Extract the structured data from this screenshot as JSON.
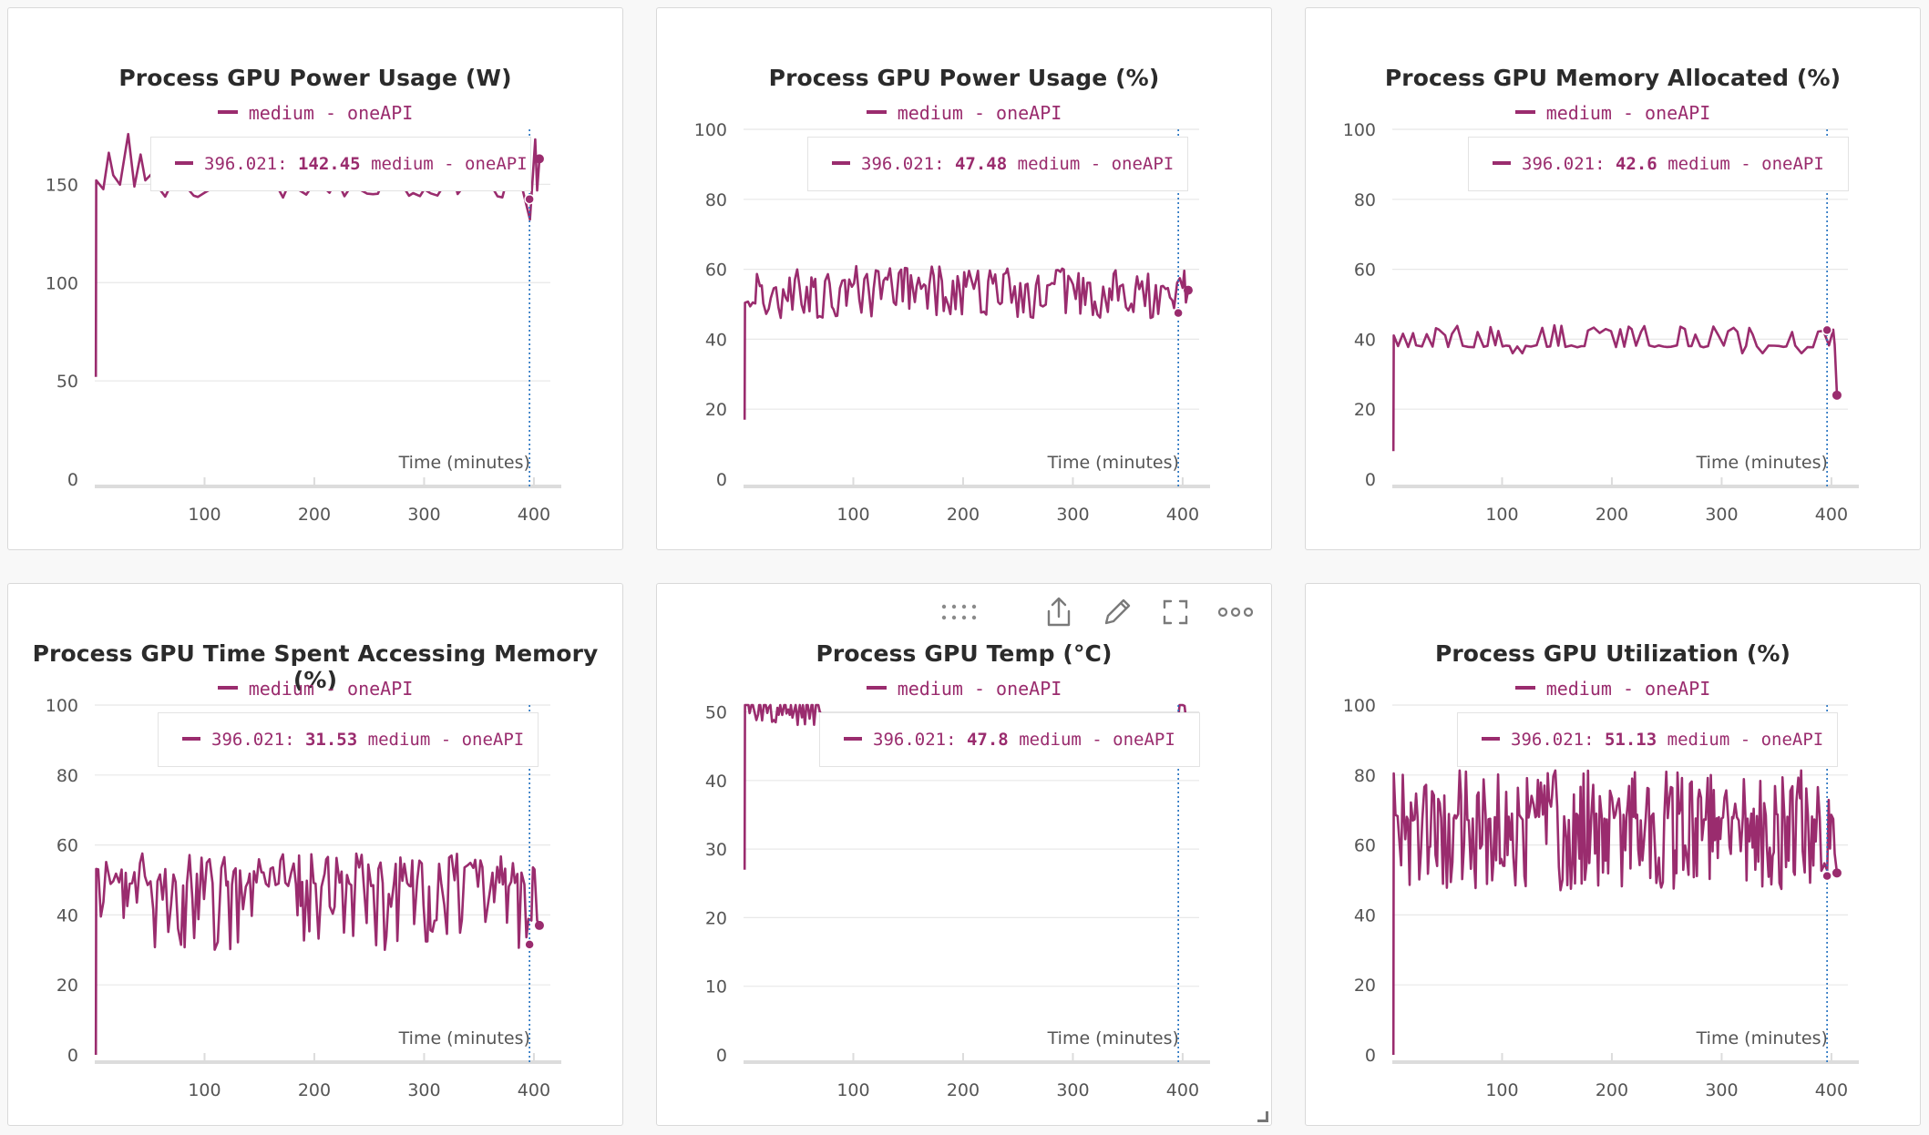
{
  "colors": {
    "series": "#9a2c6e",
    "cursor": "#1f6fbf",
    "grid": "#e8e8e8",
    "axis": "#dcdcdc",
    "text": "#555555"
  },
  "toolbar": {
    "drag_icon": "drag-handle-icon",
    "share_icon": "share-icon",
    "edit_icon": "pencil-icon",
    "expand_icon": "fullscreen-icon",
    "more_icon": "more-icon"
  },
  "chart_data": [
    {
      "type": "line",
      "title": "Process GPU Power Usage (W)",
      "legend": "medium - oneAPI",
      "xlabel": "Time (minutes)",
      "xlim": [
        0,
        415
      ],
      "ylim": [
        0,
        178
      ],
      "x_ticks": [
        100,
        200,
        300,
        400
      ],
      "y_ticks": [
        0,
        50,
        100,
        150
      ],
      "cursor": {
        "x": 396.021,
        "label": "396.021:",
        "value": "142.45",
        "series": "medium - oneAPI"
      },
      "series": [
        {
          "name": "medium - oneAPI",
          "baseline": 150,
          "lows": [
            143,
            148
          ],
          "highs": [
            152,
            156
          ],
          "dip_spacing": 8,
          "start_value": 52,
          "end_value": 163,
          "end_x": 405,
          "segments": [
            {
              "x0": 1,
              "x1": 43,
              "baseline": 166,
              "lows": [
                147,
                158
              ],
              "highs": [
                170,
                178
              ]
            },
            {
              "x0": 393,
              "x1": 405,
              "baseline": 166,
              "lows": [
                125,
                145
              ],
              "highs": [
                170,
                174
              ]
            }
          ]
        }
      ]
    },
    {
      "type": "line",
      "title": "Process GPU Power Usage (%)",
      "legend": "medium - oneAPI",
      "xlabel": "Time (minutes)",
      "xlim": [
        0,
        415
      ],
      "ylim": [
        0,
        100
      ],
      "x_ticks": [
        100,
        200,
        300,
        400
      ],
      "y_ticks": [
        0,
        20,
        40,
        60,
        80,
        100
      ],
      "cursor": {
        "x": 396.021,
        "label": "396.021:",
        "value": "47.48",
        "series": "medium - oneAPI"
      },
      "series": [
        {
          "name": "medium - oneAPI",
          "baseline": 55,
          "lows": [
            46,
            52
          ],
          "highs": [
            56,
            61
          ],
          "dip_spacing": 3,
          "start_value": 17,
          "end_value": 54,
          "end_x": 405
        }
      ]
    },
    {
      "type": "line",
      "title": "Process GPU Memory Allocated (%)",
      "legend": "medium - oneAPI",
      "xlabel": "Time (minutes)",
      "xlim": [
        0,
        415
      ],
      "ylim": [
        0,
        100
      ],
      "x_ticks": [
        100,
        200,
        300,
        400
      ],
      "y_ticks": [
        0,
        20,
        40,
        60,
        80,
        100
      ],
      "cursor": {
        "x": 396.021,
        "label": "396.021:",
        "value": "42.6",
        "series": "medium - oneAPI"
      },
      "series": [
        {
          "name": "medium - oneAPI",
          "baseline": 38,
          "lows": [
            36,
            38
          ],
          "highs": [
            41,
            44
          ],
          "dip_spacing": 6,
          "spike_up": true,
          "start_value": 8,
          "end_value": 24,
          "end_x": 405
        }
      ]
    },
    {
      "type": "line",
      "title": "Process GPU Time Spent Accessing Memory (%)",
      "legend": "medium - oneAPI",
      "xlabel": "Time (minutes)",
      "xlim": [
        0,
        415
      ],
      "ylim": [
        0,
        100
      ],
      "x_ticks": [
        100,
        200,
        300,
        400
      ],
      "y_ticks": [
        0,
        20,
        40,
        60,
        80,
        100
      ],
      "cursor": {
        "x": 396.021,
        "label": "396.021:",
        "value": "31.53",
        "series": "medium - oneAPI"
      },
      "series": [
        {
          "name": "medium - oneAPI",
          "baseline": 49,
          "lows": [
            30,
            46
          ],
          "highs": [
            51,
            58
          ],
          "dip_spacing": 3,
          "start_value": 0,
          "end_value": 37,
          "end_x": 405
        }
      ]
    },
    {
      "type": "line",
      "title": "Process GPU Temp (°C)",
      "legend": "medium - oneAPI",
      "xlabel": "Time (minutes)",
      "xlim": [
        0,
        415
      ],
      "ylim": [
        0,
        51
      ],
      "x_ticks": [
        100,
        200,
        300,
        400
      ],
      "y_ticks": [
        0,
        10,
        20,
        30,
        40,
        50
      ],
      "cursor": {
        "x": 396.021,
        "label": "396.021:",
        "value": "47.8",
        "series": "medium - oneAPI"
      },
      "series": [
        {
          "name": "medium - oneAPI",
          "baseline": 51,
          "lows": [
            48,
            50
          ],
          "highs": [
            51,
            51.5
          ],
          "dip_spacing": 2,
          "start_value": 27,
          "end_value": 47.8,
          "end_x": 405,
          "visible_ranges": [
            [
              1,
              72
            ],
            [
              393,
              405
            ]
          ]
        }
      ]
    },
    {
      "type": "line",
      "title": "Process GPU Utilization (%)",
      "legend": "medium - oneAPI",
      "xlabel": "Time (minutes)",
      "xlim": [
        0,
        415
      ],
      "ylim": [
        0,
        100
      ],
      "x_ticks": [
        100,
        200,
        300,
        400
      ],
      "y_ticks": [
        0,
        20,
        40,
        60,
        80,
        100
      ],
      "cursor": {
        "x": 396.021,
        "label": "396.021:",
        "value": "51.13",
        "series": "medium - oneAPI"
      },
      "series": [
        {
          "name": "medium - oneAPI",
          "baseline": 68,
          "lows": [
            47,
            62
          ],
          "highs": [
            70,
            82
          ],
          "dip_spacing": 2,
          "start_value": 0,
          "end_value": 52,
          "end_x": 405
        }
      ]
    }
  ]
}
